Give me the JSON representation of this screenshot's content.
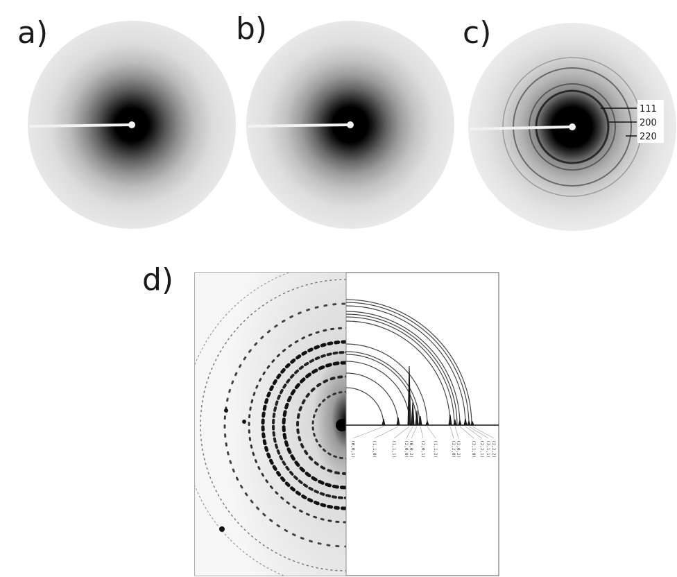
{
  "panels": {
    "a": {
      "label": "a)"
    },
    "b": {
      "label": "b)"
    },
    "c": {
      "label": "c)",
      "ring_labels": [
        "111",
        "200",
        "220"
      ]
    },
    "d": {
      "label": "d)",
      "peak_labels": [
        "(0,0,1)",
        "(1,1,0)",
        "(1,1,1)",
        "(2,0,0)",
        "(0,0,2)",
        "(2,0,1)",
        "(1,1,2)",
        "(2,2,0)",
        "(2,0,2)",
        "(3,1,0)",
        "(2,2,1)",
        "(3,1,1)",
        "(2,2,2)"
      ]
    }
  },
  "colors": {
    "background": "#ffffff",
    "plate": "#e9e9e9",
    "center": "#000000",
    "halo": "#8a8a8a",
    "ring": "#3a3a3a"
  }
}
